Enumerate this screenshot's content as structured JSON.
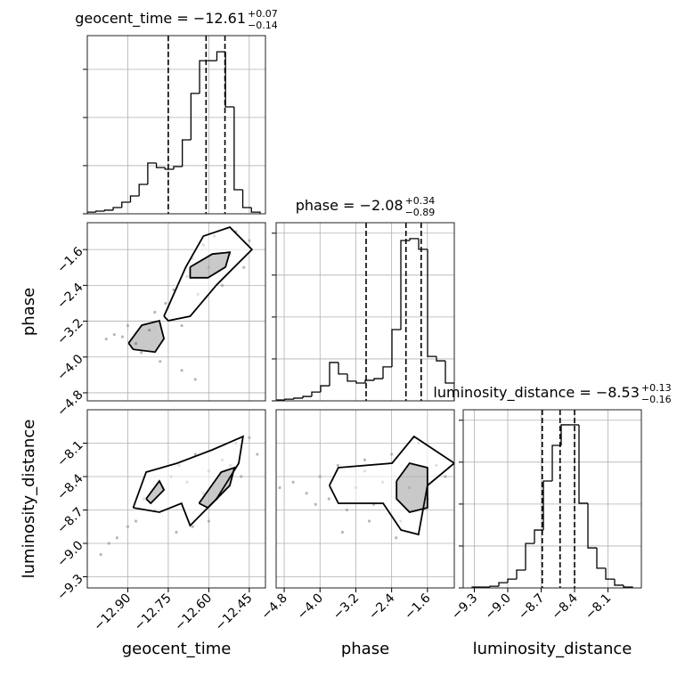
{
  "chart_data": {
    "type": "corner",
    "grid": true,
    "color": "#000000",
    "point_color": "#9a9a9a",
    "parameters": [
      {
        "label": "geocent_time",
        "title": "geocent_time = −12.61",
        "title_plus": "+0.07",
        "title_minus": "−0.14",
        "lim": [
          -13.05,
          -12.39
        ],
        "ticks": [
          {
            "value": -12.9,
            "label": "−12.90"
          },
          {
            "value": -12.75,
            "label": "−12.75"
          },
          {
            "value": -12.6,
            "label": "−12.60"
          },
          {
            "value": -12.45,
            "label": "−12.45"
          }
        ],
        "quantiles": [
          -12.75,
          -12.61,
          -12.54
        ],
        "hist": {
          "bins": [
            -13.05,
            -13.018,
            -12.986,
            -12.954,
            -12.922,
            -12.89,
            -12.858,
            -12.826,
            -12.794,
            -12.762,
            -12.73,
            -12.698,
            -12.666,
            -12.634,
            -12.602,
            -12.57,
            -12.538,
            -12.506,
            -12.474,
            -12.442,
            -12.41
          ],
          "counts": [
            7,
            11,
            15,
            26,
            48,
            74,
            122,
            211,
            192,
            185,
            196,
            307,
            500,
            636,
            636,
            673,
            444,
            100,
            26,
            7
          ],
          "ylim": [
            0,
            740
          ],
          "yticks": [
            0,
            200,
            400,
            600
          ]
        }
      },
      {
        "label": "phase",
        "title": "phase = −2.08",
        "title_plus": "+0.34",
        "title_minus": "−0.89",
        "lim": [
          -4.98,
          -1.0
        ],
        "ticks": [
          {
            "value": -4.8,
            "label": "−4.8"
          },
          {
            "value": -4.0,
            "label": "−4.0"
          },
          {
            "value": -3.2,
            "label": "−3.2"
          },
          {
            "value": -2.4,
            "label": "−2.4"
          },
          {
            "value": -1.6,
            "label": "−1.6"
          }
        ],
        "quantiles": [
          -2.97,
          -2.08,
          -1.74
        ],
        "hist": {
          "bins": [
            -4.98,
            -4.781,
            -4.582,
            -4.383,
            -4.184,
            -3.985,
            -3.786,
            -3.587,
            -3.388,
            -3.189,
            -2.99,
            -2.791,
            -2.592,
            -2.393,
            -2.194,
            -1.995,
            -1.796,
            -1.597,
            -1.398,
            -1.199,
            -1.0
          ],
          "counts": [
            4,
            8,
            13,
            21,
            42,
            72,
            183,
            128,
            94,
            85,
            98,
            106,
            162,
            340,
            765,
            774,
            723,
            212,
            191,
            85
          ],
          "ylim": [
            0,
            850
          ],
          "yticks": [
            0,
            200,
            400,
            600,
            800
          ]
        }
      },
      {
        "label": "luminosity_distance",
        "title": "luminosity_distance = −8.53",
        "title_plus": "+0.13",
        "title_minus": "−0.16",
        "lim": [
          -9.4,
          -7.8
        ],
        "ticks": [
          {
            "value": -9.3,
            "label": "−9.3"
          },
          {
            "value": -9.0,
            "label": "−9.0"
          },
          {
            "value": -8.7,
            "label": "−8.7"
          },
          {
            "value": -8.4,
            "label": "−8.4"
          },
          {
            "value": -8.1,
            "label": "−8.1"
          }
        ],
        "quantiles": [
          -8.69,
          -8.53,
          -8.4
        ],
        "hist": {
          "bins": [
            -9.32,
            -9.24,
            -9.16,
            -9.08,
            -9.0,
            -8.92,
            -8.84,
            -8.76,
            -8.68,
            -8.6,
            -8.52,
            -8.44,
            -8.36,
            -8.28,
            -8.2,
            -8.12,
            -8.04,
            -7.96,
            -7.88
          ],
          "counts": [
            4,
            4,
            8,
            25,
            42,
            85,
            212,
            276,
            510,
            680,
            778,
            778,
            404,
            191,
            94,
            42,
            13,
            4
          ],
          "ylim": [
            0,
            850
          ],
          "yticks": [
            0,
            200,
            400,
            600,
            800
          ]
        }
      }
    ],
    "pairs": [
      {
        "contours": [
          {
            "x": [
              -12.766,
              -12.685,
              -12.62,
              -12.522,
              -12.44,
              -12.505,
              -12.571,
              -12.669,
              -12.75,
              -12.766
            ],
            "y": [
              -3.09,
              -1.99,
              -1.3,
              -1.1,
              -1.6,
              -1.99,
              -2.39,
              -3.09,
              -3.19,
              -3.09
            ]
          },
          {
            "x": [
              -12.897,
              -12.848,
              -12.783,
              -12.766,
              -12.799,
              -12.88,
              -12.897
            ],
            "y": [
              -3.69,
              -3.29,
              -3.19,
              -3.59,
              -3.89,
              -3.83,
              -3.69
            ]
          },
          {
            "x": [
              -12.669,
              -12.587,
              -12.522,
              -12.538,
              -12.603,
              -12.669,
              -12.669
            ],
            "y": [
              -1.99,
              -1.7,
              -1.66,
              -1.99,
              -2.23,
              -2.23,
              -1.99
            ]
          }
        ],
        "points": {
          "x": [
            -12.98,
            -12.95,
            -12.92,
            -12.9,
            -12.87,
            -12.85,
            -12.82,
            -12.8,
            -12.78,
            -12.76,
            -12.73,
            -12.7,
            -12.68,
            -12.66,
            -12.64,
            -12.62,
            -12.6,
            -12.58,
            -12.55,
            -12.52,
            -12.5,
            -12.47,
            -12.45,
            -12.7,
            -12.65,
            -12.75
          ],
          "y": [
            -3.6,
            -3.5,
            -3.55,
            -3.3,
            -3.7,
            -3.9,
            -3.4,
            -3.0,
            -4.1,
            -2.8,
            -2.5,
            -4.3,
            -2.2,
            -1.8,
            -2.6,
            -1.5,
            -2.0,
            -1.3,
            -2.4,
            -1.7,
            -1.2,
            -2.0,
            -1.4,
            -3.3,
            -4.5,
            -2.9
          ]
        }
      },
      {
        "contours": [
          {
            "x": [
              -12.88,
              -12.832,
              -12.717,
              -12.587,
              -12.473,
              -12.489,
              -12.571,
              -12.669,
              -12.701,
              -12.783,
              -12.88
            ],
            "y": [
              -8.68,
              -8.36,
              -8.28,
              -8.16,
              -8.04,
              -8.28,
              -8.6,
              -8.84,
              -8.64,
              -8.72,
              -8.68
            ]
          },
          {
            "x": [
              -12.636,
              -12.554,
              -12.505,
              -12.522,
              -12.603,
              -12.636
            ],
            "y": [
              -8.64,
              -8.36,
              -8.32,
              -8.48,
              -8.68,
              -8.64
            ]
          },
          {
            "x": [
              -12.832,
              -12.783,
              -12.766,
              -12.815,
              -12.832
            ],
            "y": [
              -8.6,
              -8.44,
              -8.52,
              -8.64,
              -8.6
            ]
          }
        ],
        "points": {
          "x": [
            -13.0,
            -12.97,
            -12.94,
            -12.9,
            -12.87,
            -12.84,
            -12.8,
            -12.77,
            -12.74,
            -12.71,
            -12.68,
            -12.65,
            -12.62,
            -12.6,
            -12.57,
            -12.55,
            -12.52,
            -12.5,
            -12.48,
            -12.45,
            -12.42,
            -12.72,
            -12.66,
            -12.6
          ],
          "y": [
            -9.1,
            -9.0,
            -8.95,
            -8.85,
            -8.8,
            -8.6,
            -8.7,
            -8.5,
            -8.4,
            -8.3,
            -8.45,
            -8.2,
            -8.55,
            -8.35,
            -8.6,
            -8.25,
            -8.3,
            -8.1,
            -8.4,
            -8.05,
            -8.2,
            -8.9,
            -8.85,
            -8.8
          ]
        }
      },
      {
        "contours": [
          {
            "x": [
              -3.79,
              -3.59,
              -2.39,
              -1.9,
              -1.0,
              -1.6,
              -1.8,
              -2.19,
              -2.59,
              -3.59,
              -3.79
            ],
            "y": [
              -8.48,
              -8.32,
              -8.28,
              -8.04,
              -8.28,
              -8.48,
              -8.92,
              -8.88,
              -8.64,
              -8.64,
              -8.48
            ]
          },
          {
            "x": [
              -2.29,
              -2.0,
              -1.6,
              -1.6,
              -2.0,
              -2.29,
              -2.29
            ],
            "y": [
              -8.44,
              -8.28,
              -8.32,
              -8.68,
              -8.72,
              -8.6,
              -8.44
            ]
          }
        ],
        "points": {
          "x": [
            -4.9,
            -4.6,
            -4.3,
            -4.0,
            -3.8,
            -3.6,
            -3.4,
            -3.2,
            -3.0,
            -2.8,
            -2.6,
            -2.4,
            -2.2,
            -2.0,
            -1.8,
            -1.6,
            -1.4,
            -1.2,
            -3.5,
            -2.9,
            -2.3,
            -1.9,
            -4.1,
            -3.0
          ],
          "y": [
            -8.5,
            -8.45,
            -8.55,
            -8.4,
            -8.6,
            -8.3,
            -8.7,
            -8.5,
            -8.35,
            -8.65,
            -8.45,
            -8.2,
            -8.8,
            -8.5,
            -8.1,
            -8.6,
            -8.3,
            -8.4,
            -8.9,
            -8.8,
            -8.95,
            -8.05,
            -8.65,
            -8.25
          ]
        }
      }
    ]
  }
}
